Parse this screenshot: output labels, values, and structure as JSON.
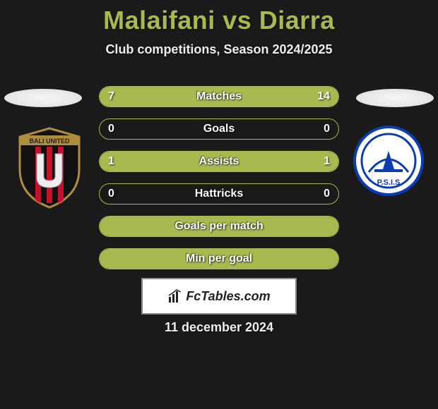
{
  "title": "Malaifani vs Diarra",
  "subtitle": "Club competitions, Season 2024/2025",
  "date": "11 december 2024",
  "footer_logo_text": "FcTables.com",
  "colors": {
    "accent": "#a9b84f",
    "background": "#1a1a1a",
    "badge_left_stripe_red": "#c8102e",
    "badge_left_black": "#111111",
    "badge_left_gold": "#b08d3c",
    "badge_right_blue": "#0a3db3",
    "badge_right_white": "#ffffff"
  },
  "stats": [
    {
      "label": "Matches",
      "left_val": "7",
      "right_val": "14",
      "left_pct": 33,
      "right_pct": 67
    },
    {
      "label": "Goals",
      "left_val": "0",
      "right_val": "0",
      "left_pct": 0,
      "right_pct": 0
    },
    {
      "label": "Assists",
      "left_val": "1",
      "right_val": "1",
      "left_pct": 50,
      "right_pct": 50
    },
    {
      "label": "Hattricks",
      "left_val": "0",
      "right_val": "0",
      "left_pct": 0,
      "right_pct": 0
    },
    {
      "label": "Goals per match",
      "left_val": "",
      "right_val": "",
      "full": true
    },
    {
      "label": "Min per goal",
      "left_val": "",
      "right_val": "",
      "full": true
    }
  ],
  "player_left_name": "Malaifani",
  "player_right_name": "Diarra",
  "club_left_name": "Bali United",
  "club_right_name": "PSIS"
}
